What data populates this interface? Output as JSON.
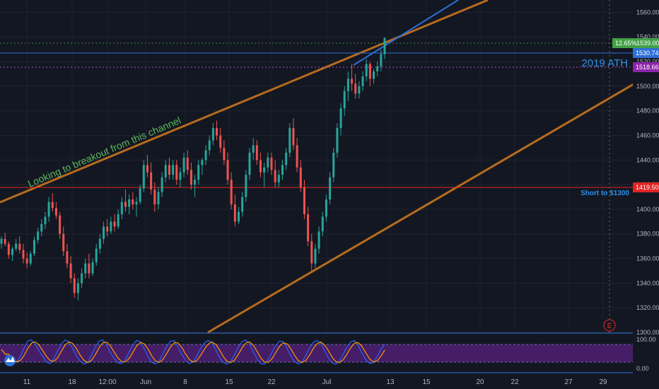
{
  "chart_data": {
    "type": "candlestick",
    "instrument_hint": "gold-like price chart",
    "colors": {
      "background": "#131722",
      "grid": "#1f2430",
      "up": "#26a69a",
      "down": "#ef5350",
      "channel": "#b76b1e",
      "blue_line": "#2f6fd6",
      "red_line": "#e02424",
      "ath_text": "#2f8fe6",
      "note_text": "#5cb85c",
      "osc_fill": "#4b1f6f",
      "osc_bounds": "#6a6fb0"
    },
    "y_axis": {
      "min": 1300,
      "max": 1570,
      "ticks": [
        "1560.00",
        "1540.00",
        "1520.00",
        "1500.00",
        "1480.00",
        "1460.00",
        "1440.00",
        "1420.00",
        "1400.00",
        "1380.00",
        "1360.00",
        "1340.00",
        "1320.00",
        "1300.00"
      ]
    },
    "x_axis": {
      "labels": [
        "11",
        "18",
        "12:00",
        "Jun",
        "8",
        "15",
        "22",
        "Jul",
        "13",
        "15",
        "20",
        "22",
        "27",
        "29"
      ]
    },
    "price_levels": [
      {
        "name": "resistance_blue",
        "value": 1530.74,
        "label": "1530.74"
      },
      {
        "name": "ath",
        "value": 1518.66,
        "label": "1518.66"
      },
      {
        "name": "target",
        "value": 1419.5,
        "label": "1419.50"
      }
    ],
    "current_badge": {
      "pct": "12.65%",
      "price": "1539.00"
    },
    "annotations": {
      "ath": "2019 ATH",
      "short": "Short to $1300",
      "breakout": "Looking to breakout from this channel",
      "earnings_marker": "E"
    },
    "oscillator": {
      "ticks": [
        "100.00",
        "0.00"
      ],
      "upper": 80,
      "lower": 20
    },
    "candles_ohlc": [
      [
        1372,
        1378,
        1368,
        1376
      ],
      [
        1376,
        1381,
        1370,
        1372
      ],
      [
        1372,
        1374,
        1360,
        1363
      ],
      [
        1363,
        1370,
        1358,
        1368
      ],
      [
        1368,
        1376,
        1366,
        1372
      ],
      [
        1372,
        1378,
        1364,
        1367
      ],
      [
        1367,
        1372,
        1356,
        1360
      ],
      [
        1360,
        1365,
        1352,
        1356
      ],
      [
        1356,
        1366,
        1354,
        1364
      ],
      [
        1364,
        1378,
        1362,
        1375
      ],
      [
        1375,
        1385,
        1372,
        1382
      ],
      [
        1382,
        1392,
        1378,
        1388
      ],
      [
        1388,
        1398,
        1384,
        1394
      ],
      [
        1394,
        1410,
        1390,
        1406
      ],
      [
        1406,
        1413,
        1398,
        1401
      ],
      [
        1401,
        1406,
        1392,
        1395
      ],
      [
        1395,
        1398,
        1376,
        1380
      ],
      [
        1380,
        1386,
        1362,
        1366
      ],
      [
        1366,
        1372,
        1352,
        1356
      ],
      [
        1356,
        1362,
        1340,
        1344
      ],
      [
        1344,
        1348,
        1328,
        1332
      ],
      [
        1332,
        1344,
        1326,
        1340
      ],
      [
        1340,
        1352,
        1336,
        1348
      ],
      [
        1348,
        1360,
        1344,
        1356
      ],
      [
        1356,
        1364,
        1344,
        1348
      ],
      [
        1348,
        1360,
        1346,
        1357
      ],
      [
        1357,
        1372,
        1354,
        1368
      ],
      [
        1368,
        1380,
        1364,
        1376
      ],
      [
        1376,
        1390,
        1372,
        1386
      ],
      [
        1386,
        1392,
        1378,
        1382
      ],
      [
        1382,
        1394,
        1380,
        1390
      ],
      [
        1390,
        1396,
        1382,
        1386
      ],
      [
        1386,
        1400,
        1384,
        1396
      ],
      [
        1396,
        1410,
        1392,
        1406
      ],
      [
        1406,
        1416,
        1398,
        1402
      ],
      [
        1402,
        1412,
        1396,
        1408
      ],
      [
        1408,
        1414,
        1400,
        1404
      ],
      [
        1404,
        1410,
        1394,
        1406
      ],
      [
        1406,
        1420,
        1404,
        1417
      ],
      [
        1417,
        1440,
        1414,
        1436
      ],
      [
        1436,
        1444,
        1426,
        1430
      ],
      [
        1430,
        1438,
        1412,
        1416
      ],
      [
        1416,
        1422,
        1398,
        1404
      ],
      [
        1404,
        1418,
        1400,
        1414
      ],
      [
        1414,
        1430,
        1410,
        1426
      ],
      [
        1426,
        1440,
        1422,
        1436
      ],
      [
        1436,
        1442,
        1424,
        1428
      ],
      [
        1428,
        1440,
        1424,
        1436
      ],
      [
        1436,
        1440,
        1420,
        1424
      ],
      [
        1424,
        1434,
        1418,
        1430
      ],
      [
        1430,
        1446,
        1426,
        1442
      ],
      [
        1442,
        1448,
        1428,
        1432
      ],
      [
        1432,
        1438,
        1416,
        1420
      ],
      [
        1420,
        1428,
        1410,
        1424
      ],
      [
        1424,
        1440,
        1420,
        1436
      ],
      [
        1436,
        1442,
        1428,
        1440
      ],
      [
        1440,
        1452,
        1436,
        1448
      ],
      [
        1448,
        1460,
        1444,
        1456
      ],
      [
        1456,
        1470,
        1452,
        1466
      ],
      [
        1466,
        1472,
        1456,
        1460
      ],
      [
        1460,
        1466,
        1446,
        1450
      ],
      [
        1450,
        1456,
        1436,
        1440
      ],
      [
        1440,
        1446,
        1420,
        1424
      ],
      [
        1424,
        1430,
        1400,
        1404
      ],
      [
        1404,
        1412,
        1386,
        1390
      ],
      [
        1390,
        1402,
        1388,
        1398
      ],
      [
        1398,
        1414,
        1394,
        1410
      ],
      [
        1410,
        1432,
        1406,
        1428
      ],
      [
        1428,
        1450,
        1424,
        1446
      ],
      [
        1446,
        1458,
        1440,
        1452
      ],
      [
        1452,
        1456,
        1436,
        1440
      ],
      [
        1440,
        1446,
        1426,
        1430
      ],
      [
        1430,
        1438,
        1418,
        1434
      ],
      [
        1434,
        1446,
        1430,
        1442
      ],
      [
        1442,
        1446,
        1428,
        1432
      ],
      [
        1432,
        1440,
        1418,
        1422
      ],
      [
        1422,
        1432,
        1418,
        1428
      ],
      [
        1428,
        1440,
        1424,
        1436
      ],
      [
        1436,
        1450,
        1432,
        1446
      ],
      [
        1446,
        1470,
        1442,
        1466
      ],
      [
        1466,
        1474,
        1448,
        1452
      ],
      [
        1452,
        1458,
        1430,
        1434
      ],
      [
        1434,
        1440,
        1414,
        1418
      ],
      [
        1418,
        1424,
        1392,
        1396
      ],
      [
        1396,
        1402,
        1370,
        1374
      ],
      [
        1374,
        1380,
        1350,
        1356
      ],
      [
        1356,
        1372,
        1352,
        1368
      ],
      [
        1368,
        1386,
        1364,
        1382
      ],
      [
        1382,
        1398,
        1378,
        1394
      ],
      [
        1394,
        1412,
        1390,
        1408
      ],
      [
        1408,
        1430,
        1404,
        1426
      ],
      [
        1426,
        1450,
        1422,
        1446
      ],
      [
        1446,
        1470,
        1442,
        1466
      ],
      [
        1466,
        1486,
        1460,
        1482
      ],
      [
        1482,
        1500,
        1476,
        1496
      ],
      [
        1496,
        1512,
        1488,
        1506
      ],
      [
        1506,
        1518,
        1496,
        1502
      ],
      [
        1502,
        1510,
        1490,
        1494
      ],
      [
        1494,
        1504,
        1490,
        1500
      ],
      [
        1500,
        1512,
        1496,
        1508
      ],
      [
        1508,
        1522,
        1504,
        1518
      ],
      [
        1518,
        1520,
        1500,
        1506
      ],
      [
        1506,
        1514,
        1502,
        1512
      ],
      [
        1512,
        1520,
        1508,
        1516
      ],
      [
        1516,
        1530,
        1512,
        1526
      ],
      [
        1526,
        1540,
        1522,
        1539
      ]
    ],
    "oscillator_values": [
      62,
      48,
      30,
      18,
      22,
      40,
      66,
      88,
      92,
      78,
      58,
      40,
      22,
      18,
      34,
      58,
      80,
      92,
      86,
      64,
      42,
      24,
      16,
      22,
      46,
      70,
      88,
      92,
      76,
      52,
      34,
      20,
      18,
      30,
      54,
      76,
      90,
      86,
      64,
      40,
      22,
      16,
      26,
      50,
      72,
      88,
      90,
      70,
      46,
      28,
      18,
      22,
      42,
      64,
      82,
      90,
      84,
      62,
      38,
      22,
      16,
      24,
      44,
      68,
      86,
      92,
      80,
      56,
      34,
      18,
      16,
      30,
      52,
      74,
      88,
      86,
      66,
      42,
      24,
      16,
      22,
      44,
      66,
      84,
      90,
      82,
      58,
      36,
      20,
      16,
      26,
      48,
      70,
      86,
      90,
      74,
      50,
      30,
      18,
      20,
      40,
      62,
      78
    ]
  }
}
